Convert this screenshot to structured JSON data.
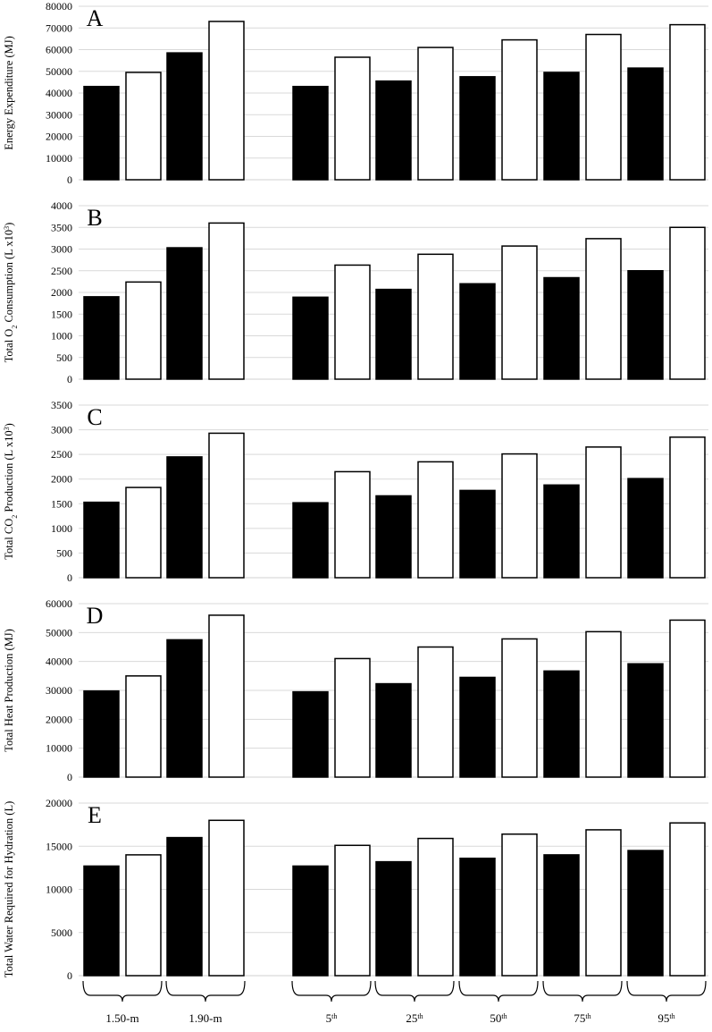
{
  "chart_data": [
    {
      "type": "bar",
      "panel_letter": "A",
      "ylabel": "Energy Expenditure (MJ)",
      "ylim": [
        0,
        80000
      ],
      "yticks": [
        0,
        10000,
        20000,
        30000,
        40000,
        50000,
        60000,
        70000,
        80000
      ],
      "grid": true,
      "values": [
        43000,
        49500,
        58500,
        73000,
        43000,
        56500,
        45500,
        61000,
        47500,
        64500,
        49500,
        67000,
        51500,
        71500
      ],
      "colors": [
        "#000000",
        "#ffffff",
        "#000000",
        "#ffffff",
        "#000000",
        "#ffffff",
        "#000000",
        "#ffffff",
        "#000000",
        "#ffffff",
        "#000000",
        "#ffffff",
        "#000000",
        "#ffffff"
      ]
    },
    {
      "type": "bar",
      "panel_letter": "B",
      "ylabel": "Total O2 Consumption (L x10^3)",
      "ylim": [
        0,
        4000
      ],
      "yticks": [
        0,
        500,
        1000,
        1500,
        2000,
        2500,
        3000,
        3500,
        4000
      ],
      "grid": true,
      "values": [
        1900,
        2240,
        3030,
        3600,
        1890,
        2630,
        2070,
        2880,
        2200,
        3070,
        2340,
        3240,
        2500,
        3500
      ],
      "colors": [
        "#000000",
        "#ffffff",
        "#000000",
        "#ffffff",
        "#000000",
        "#ffffff",
        "#000000",
        "#ffffff",
        "#000000",
        "#ffffff",
        "#000000",
        "#ffffff",
        "#000000",
        "#ffffff"
      ]
    },
    {
      "type": "bar",
      "panel_letter": "C",
      "ylabel": "Total CO2 Production (L x10^3)",
      "ylim": [
        0,
        3500
      ],
      "yticks": [
        0,
        500,
        1000,
        1500,
        2000,
        2500,
        3000,
        3500
      ],
      "grid": true,
      "values": [
        1530,
        1830,
        2450,
        2930,
        1520,
        2150,
        1660,
        2350,
        1770,
        2510,
        1880,
        2650,
        2010,
        2850
      ],
      "colors": [
        "#000000",
        "#ffffff",
        "#000000",
        "#ffffff",
        "#000000",
        "#ffffff",
        "#000000",
        "#ffffff",
        "#000000",
        "#ffffff",
        "#000000",
        "#ffffff",
        "#000000",
        "#ffffff"
      ]
    },
    {
      "type": "bar",
      "panel_letter": "D",
      "ylabel": "Total Heat Production (MJ)",
      "ylim": [
        0,
        60000
      ],
      "yticks": [
        0,
        10000,
        20000,
        30000,
        40000,
        50000,
        60000
      ],
      "grid": true,
      "values": [
        29800,
        35000,
        47500,
        56000,
        29500,
        41000,
        32300,
        45000,
        34500,
        47800,
        36700,
        50300,
        39200,
        54300
      ],
      "colors": [
        "#000000",
        "#ffffff",
        "#000000",
        "#ffffff",
        "#000000",
        "#ffffff",
        "#000000",
        "#ffffff",
        "#000000",
        "#ffffff",
        "#000000",
        "#ffffff",
        "#000000",
        "#ffffff"
      ]
    },
    {
      "type": "bar",
      "panel_letter": "E",
      "ylabel": "Total Water Required for Hydration (L)",
      "ylim": [
        0,
        20000
      ],
      "yticks": [
        0,
        5000,
        10000,
        15000,
        20000
      ],
      "grid": true,
      "values": [
        12700,
        14000,
        16000,
        18000,
        12700,
        15100,
        13200,
        15900,
        13600,
        16400,
        14000,
        16900,
        14500,
        17700
      ],
      "colors": [
        "#000000",
        "#ffffff",
        "#000000",
        "#ffffff",
        "#000000",
        "#ffffff",
        "#000000",
        "#ffffff",
        "#000000",
        "#ffffff",
        "#000000",
        "#ffffff",
        "#000000",
        "#ffffff"
      ]
    }
  ],
  "group_labels": [
    {
      "base": "1.50-m",
      "sup": ""
    },
    {
      "base": "1.90-m",
      "sup": ""
    },
    {
      "base": "5",
      "sup": "th"
    },
    {
      "base": "25",
      "sup": "th"
    },
    {
      "base": "50",
      "sup": "th"
    },
    {
      "base": "75",
      "sup": "th"
    },
    {
      "base": "95",
      "sup": "th"
    }
  ]
}
